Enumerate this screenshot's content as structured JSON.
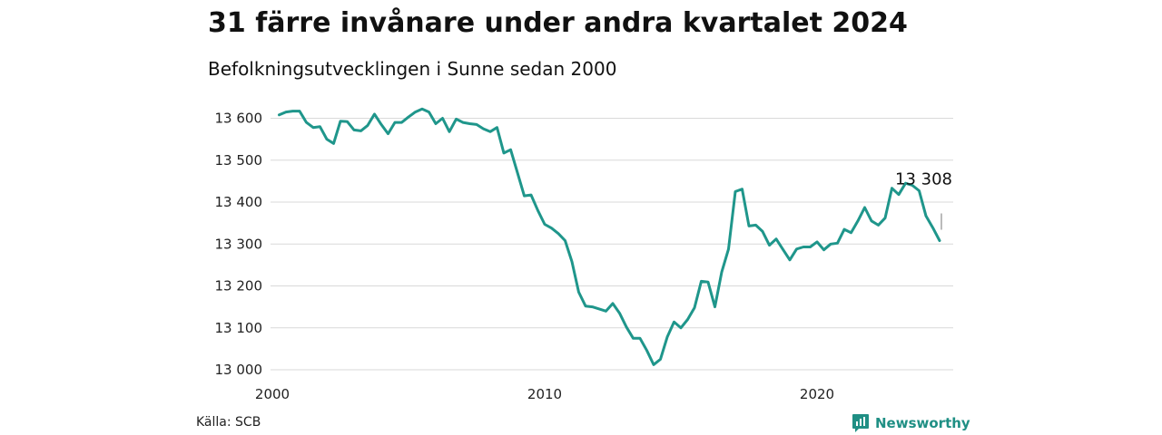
{
  "title": "31 färre invånare under andra kvartalet 2024",
  "subtitle": "Befolkningsutvecklingen i Sunne sedan 2000",
  "source": "Källa: SCB",
  "brand": {
    "name": "Newsworthy",
    "icon": "newsworthy-logo-icon",
    "color": "#1f8f84"
  },
  "chart_data": {
    "type": "line",
    "title": "31 färre invånare under andra kvartalet 2024",
    "subtitle": "Befolkningsutvecklingen i Sunne sedan 2000",
    "xlabel": "",
    "ylabel": "",
    "xlim": [
      2000,
      2025
    ],
    "ylim": [
      13000,
      13650
    ],
    "x_ticks": [
      2000,
      2010,
      2020
    ],
    "x_tick_labels": [
      "2000",
      "2010",
      "2020"
    ],
    "y_ticks": [
      13000,
      13100,
      13200,
      13300,
      13400,
      13500,
      13600
    ],
    "y_tick_labels": [
      "13 000",
      "13 100",
      "13 200",
      "13 300",
      "13 400",
      "13 500",
      "13 600"
    ],
    "grid": "horizontal",
    "line_color": "#1f968b",
    "end_label": "13 308",
    "series": [
      {
        "x": [
          2000.25,
          2000.5,
          2000.75,
          2001.0,
          2001.25,
          2001.5,
          2001.75,
          2002.0,
          2002.25,
          2002.5,
          2002.75,
          2003.0,
          2003.25,
          2003.5,
          2003.75,
          2004.0,
          2004.25,
          2004.5,
          2004.75,
          2005.0,
          2005.25,
          2005.5,
          2005.75,
          2006.0,
          2006.25,
          2006.5,
          2006.75,
          2007.0,
          2007.25,
          2007.5,
          2007.75,
          2008.0,
          2008.25,
          2008.5,
          2008.75,
          2009.0,
          2009.25,
          2009.5,
          2009.75,
          2010.0,
          2010.25,
          2010.5,
          2010.75,
          2011.0,
          2011.25,
          2011.5,
          2011.75,
          2012.0,
          2012.25,
          2012.5,
          2012.75,
          2013.0,
          2013.25,
          2013.5,
          2013.75,
          2014.0,
          2014.25,
          2014.5,
          2014.75,
          2015.0,
          2015.25,
          2015.5,
          2015.75,
          2016.0,
          2016.25,
          2016.5,
          2016.75,
          2017.0,
          2017.25,
          2017.5,
          2017.75,
          2018.0,
          2018.25,
          2018.5,
          2018.75,
          2019.0,
          2019.25,
          2019.5,
          2019.75,
          2020.0,
          2020.25,
          2020.5,
          2020.75,
          2021.0,
          2021.25,
          2021.5,
          2021.75,
          2022.0,
          2022.25,
          2022.5,
          2022.75,
          2023.0,
          2023.25,
          2023.5,
          2023.75,
          2024.0,
          2024.25,
          2024.5
        ],
        "y": [
          13608,
          13615,
          13617,
          13617,
          13590,
          13578,
          13580,
          13550,
          13540,
          13593,
          13592,
          13572,
          13570,
          13583,
          13610,
          13585,
          13563,
          13590,
          13590,
          13603,
          13615,
          13622,
          13615,
          13587,
          13600,
          13568,
          13598,
          13590,
          13587,
          13585,
          13575,
          13568,
          13578,
          13517,
          13525,
          13470,
          13415,
          13417,
          13380,
          13347,
          13338,
          13325,
          13308,
          13258,
          13185,
          13152,
          13150,
          13145,
          13140,
          13158,
          13135,
          13102,
          13075,
          13075,
          13046,
          13012,
          13025,
          13078,
          13114,
          13100,
          13120,
          13148,
          13211,
          13209,
          13150,
          13233,
          13288,
          13425,
          13431,
          13343,
          13345,
          13330,
          13297,
          13312,
          13287,
          13262,
          13288,
          13293,
          13293,
          13305,
          13286,
          13300,
          13302,
          13335,
          13327,
          13355,
          13387,
          13355,
          13345,
          13362,
          13433,
          13418,
          13445,
          13440,
          13427,
          13367,
          13339,
          13308
        ]
      }
    ]
  }
}
